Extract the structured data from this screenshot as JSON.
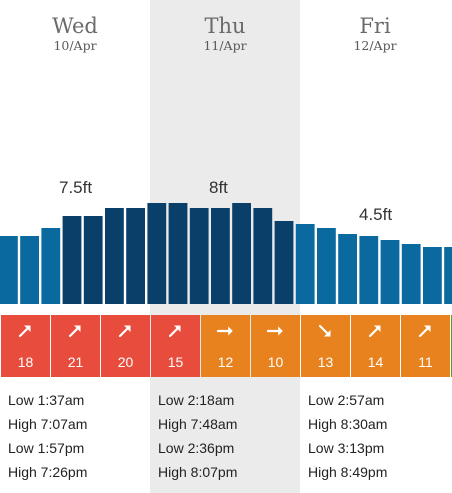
{
  "days": [
    {
      "name": "Wed",
      "date": "10/Apr",
      "peak": "7.5ft",
      "wind": [
        {
          "dir": "NE",
          "speed": "18"
        },
        {
          "dir": "NE",
          "speed": "21"
        },
        {
          "dir": "NE",
          "speed": "20"
        }
      ],
      "tides": [
        "Low 1:37am",
        "High 7:07am",
        "Low 1:57pm",
        "High 7:26pm"
      ]
    },
    {
      "name": "Thu",
      "date": "11/Apr",
      "peak": "8ft",
      "wind": [
        {
          "dir": "NE",
          "speed": "15"
        },
        {
          "dir": "E",
          "speed": "12"
        },
        {
          "dir": "E",
          "speed": "10"
        }
      ],
      "tides": [
        "Low 2:18am",
        "High 7:48am",
        "Low 2:36pm",
        "High 8:07pm"
      ]
    },
    {
      "name": "Fri",
      "date": "12/Apr",
      "peak": "4.5ft",
      "wind": [
        {
          "dir": "SE",
          "speed": "13"
        },
        {
          "dir": "NE",
          "speed": "14"
        },
        {
          "dir": "NE",
          "speed": "11"
        }
      ],
      "tides": [
        "Low 2:57am",
        "High 8:30am",
        "Low 3:13pm",
        "High 8:49pm"
      ]
    }
  ],
  "colors": {
    "bar_light": "#0a6aa0",
    "bar_dark": "#0a3f6a",
    "wind_red": "#e84c3d",
    "wind_orange": "#e8821e",
    "highlight": "#ebebeb"
  }
}
